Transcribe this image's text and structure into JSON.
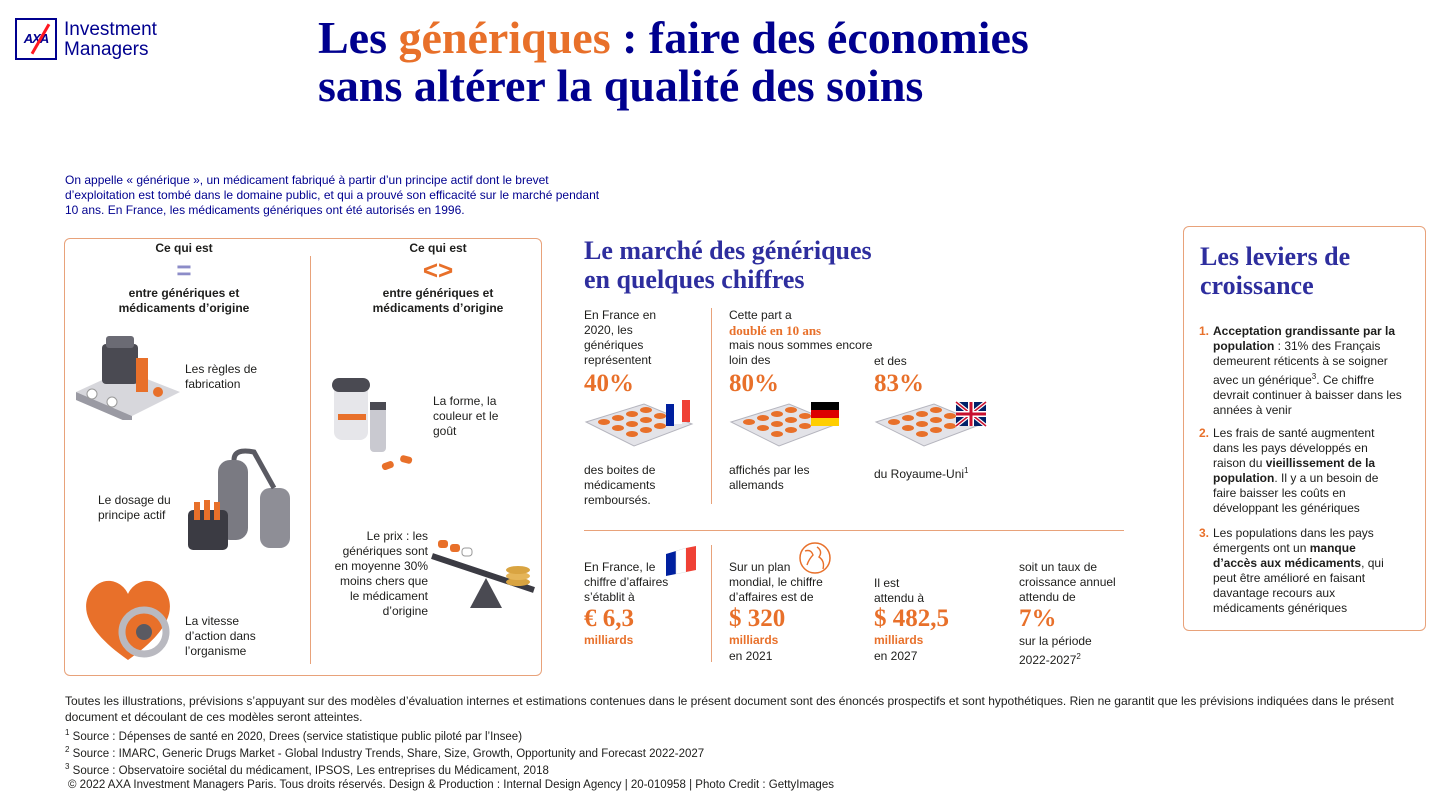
{
  "logo": {
    "mark": "AXA",
    "line1": "Investment",
    "line2": "Managers"
  },
  "title": {
    "part1": "Les ",
    "highlight": "génériques",
    "part2": " : faire des économies",
    "line2": "sans altérer la qualité des soins"
  },
  "intro": "On appelle « générique », un médicament fabriqué à partir d’un principe actif dont le brevet d’exploitation est tombé dans le domaine public, et qui a prouvé son efficacité sur le marché pendant 10 ans. En France, les médicaments génériques ont été autorisés en 1996.",
  "compare": {
    "same": {
      "label": "Ce qui est",
      "symbol": "=",
      "sub1": "entre génériques et",
      "sub2": "médicaments d’origine"
    },
    "diff": {
      "label": "Ce qui est",
      "symbol": "<>",
      "sub1": "entre génériques et",
      "sub2": "médicaments d’origine"
    },
    "same_items": [
      "Les règles de fabrication",
      "Le dosage du principe actif",
      "La vitesse d’action dans l’organisme"
    ],
    "diff_items": [
      "La forme, la couleur et le goût",
      "Le prix : les génériques sont en moyenne 30% moins chers que le médicament d’origine"
    ]
  },
  "market": {
    "title1": "Le marché des génériques",
    "title2": "en quelques chiffres",
    "france": {
      "pre": "En France en 2020, les génériques représentent",
      "value": "40%",
      "post": "des boites de médicaments remboursés."
    },
    "germany": {
      "pre1": "Cette part a",
      "pre_hl": "doublé en 10 ans",
      "pre2": "mais nous sommes encore loin des",
      "value": "80%",
      "post": "affichés par les allemands"
    },
    "uk": {
      "pre": "et des",
      "value": "83%",
      "post": "du Royaume-Uni",
      "sup": "1"
    },
    "revenue": {
      "pre": "En France, le chiffre d’affaires s’établit à",
      "value": "€ 6,3",
      "unit": "milliards"
    },
    "world": {
      "pre": "Sur un plan mondial, le chiffre d’affaires est de",
      "value": "$ 320",
      "unit": "milliards",
      "post": "en 2021"
    },
    "forecast": {
      "pre": "Il est attendu à",
      "value": "$ 482,5",
      "unit": "milliards",
      "post": "en 2027"
    },
    "growth": {
      "pre": "soit un taux de croissance annuel attendu de",
      "value": "7%",
      "post1": "sur la période",
      "post2": "2022-2027",
      "sup": "2"
    }
  },
  "levers": {
    "title1": "Les leviers de",
    "title2": "croissance",
    "items": [
      {
        "num": "1.",
        "bold": "Acceptation grandissante par la population",
        "text": " : 31% des Français demeurent réticents à se soigner avec un générique",
        "sup": "3",
        "text2": ". Ce chiffre devrait continuer à baisser dans les années à venir"
      },
      {
        "num": "2.",
        "text": "Les frais de santé augmentent dans les pays développés en raison du ",
        "bold": "vieillissement de la population",
        "text2": ". Il y a un besoin de faire baisser les coûts en développant les génériques"
      },
      {
        "num": "3.",
        "text": "Les populations dans les pays émergents ont un ",
        "bold": "manque d’accès aux médicaments",
        "text2": ", qui peut être amélioré en faisant davantage recours aux médicaments génériques"
      }
    ]
  },
  "footer": {
    "disclaimer": "Toutes les illustrations, prévisions s’appuyant sur des modèles d’évaluation internes et estimations contenues dans le présent document sont des énoncés prospectifs et sont hypothétiques. Rien ne garantit que les prévisions indiquées dans le présent document et découlant de ces modèles seront atteintes.",
    "sources": [
      {
        "sup": "1",
        "text": " Source : Dépenses de santé en 2020, Drees (service statistique public piloté par l’Insee)"
      },
      {
        "sup": "2",
        "text": " Source : IMARC, Generic Drugs Market - Global Industry Trends, Share, Size, Growth, Opportunity and Forecast 2022-2027"
      },
      {
        "sup": "3",
        "text": " Source : Observatoire sociétal du médicament, IPSOS, Les entreprises du Médicament, 2018"
      }
    ],
    "copyright": "© 2022 AXA Investment Managers Paris. Tous droits réservés. Design & Production : Internal Design Agency | 20-010958 | Photo Credit : GettyImages"
  },
  "colors": {
    "navy": "#00008f",
    "orange": "#e8702a",
    "border": "#e8a27a",
    "title_blue": "#2e2e9e"
  }
}
